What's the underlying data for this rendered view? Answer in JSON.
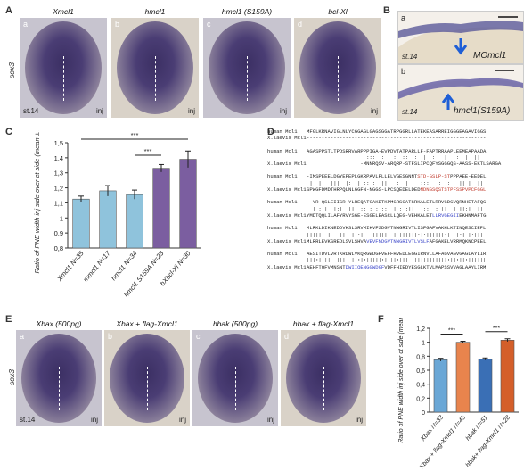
{
  "panels": {
    "A": {
      "letter": "A",
      "gene_label": "sox3",
      "stage": "st.14",
      "side": "inj",
      "items": [
        {
          "sub": "a",
          "title": "Xmcl1"
        },
        {
          "sub": "b",
          "title": "hmcl1"
        },
        {
          "sub": "c",
          "title": "hmcl1 (S159A)"
        },
        {
          "sub": "d",
          "title": "bcl-Xl"
        }
      ]
    },
    "B": {
      "letter": "B",
      "items": [
        {
          "sub": "a",
          "stage": "st.14",
          "label": "MOmcl1"
        },
        {
          "sub": "b",
          "stage": "st.14",
          "label": "hmcl1(S159A)"
        }
      ]
    },
    "C": {
      "letter": "C"
    },
    "D": {
      "letter": "D",
      "blocks": [
        [
          {
            "name": "human Mcl1",
            "seq": "MFGLKRNAVIGLNLYCGGAGLGAGSGGATRPGGRLLATEKEASARREIGGGEAGAVIGGS"
          },
          {
            "name": "",
            "seq": ""
          },
          {
            "name": "X.laevis Mcl1",
            "seq": "------------------------------------------------------------"
          }
        ],
        [
          {
            "name": "human Mcl1",
            "seq": "AGASPPSTLTPDSRRVARPPPIGA-EVPDVTATPARLLF-FAPTRRAAPLEEMEAPAADA"
          },
          {
            "name": "",
            "seq": "                    :::  :   :  ::  :  |  :   |   :  |  ||"
          },
          {
            "name": "X.laevis Mcl1",
            "seq": "                  -MNNRQSV-ARQRP-STFSLIPCQFYSGGGQS-AASS-EKTLSARGA"
          }
        ],
        [
          {
            "name": "human Mcl1",
            "seq": "-IMSPEEELDGYEPEPLGKRPAVLPLLELVGESGNNTSTD-GSLP-STPPPAEE-EEDEL",
            "hl": "STD-GSLP-ST"
          },
          {
            "name": "",
            "seq": " |  ||  |||  |: || :: :  ||   :  |    :::   :  :   || |  ||"
          },
          {
            "name": "X.laevis Mcl1",
            "seq": "SPWGFDMDTHRPQLNLGGFN-NGGS-LPCSQEDELDEDMDNGSQSTSTPFSSPVPCFGGL",
            "hl": "MDNGSQSTSTPFSSPVPCFGGL"
          }
        ],
        [
          {
            "name": "human Mcl1",
            "seq": "--YR-QSLEIISR-YLREQATGAKDTKPMGRSGATSRKALETLRRVGDGVQRNHETAFQG"
          },
          {
            "name": "",
            "seq": "  | : |  |:|  ||| :: : : ::  | : :||   ::  : ||  | ||:|  ||"
          },
          {
            "name": "X.laevis Mcl1",
            "seq": "YMDTQQLILAFYRVYSGE-ESGELEASCLLQEG-VEHKALETLLRVGEGIIEKHNMAFTG",
            "bl": "LLRVGEGII"
          }
        ],
        [
          {
            "name": "human Mcl1",
            "seq": "MLRKLDIKNEDDVKSLSRVMIHVFSDGVTNWGRIVTLISFGAFVAKHLKTINQESCIEPL"
          },
          {
            "name": "",
            "seq": "|||||  |   ||  ||:|   |||||| | ||||||:|:||||||:|  |:| |:|||"
          },
          {
            "name": "X.laevis Mcl1",
            "seq": "MLRRLEVKSREDLSVLSHVAVEVFNDGVTNWGRIVTLVSLFAFGAKELVRRMQKNCPEEL",
            "bl": "VEVFNDGVTNWGRIVTLVSLF"
          }
        ],
        [
          {
            "name": "human Mcl1",
            "seq": "AESITDVLVRTKRDWLVKQRGWDGFVEFFHVEDLEGGIRNVLLAFAGVAGVGAGLAYLIR"
          },
          {
            "name": "",
            "seq": "|||:| ||  |||  ||:|:|||||:||||:|||  |||||||||||:||:||:||||||"
          },
          {
            "name": "X.laevis Mcl1",
            "seq": "AEHFTQFVMNSNTDWIIQENGGWDGFVDFFHIEDYESGLKTVLMAPSSVVAGLAAYLIRM",
            "bl": "DWIIQENGGWDGF"
          }
        ]
      ]
    },
    "E": {
      "letter": "E",
      "gene_label": "sox3",
      "stage": "st.14",
      "side": "inj",
      "items": [
        {
          "sub": "a",
          "title": "Xbax (500pg)"
        },
        {
          "sub": "b",
          "title": "Xbax + flag-Xmcl1"
        },
        {
          "sub": "c",
          "title": "hbak (500pg)"
        },
        {
          "sub": "d",
          "title": "hbak + flag-Xmcl1"
        }
      ]
    },
    "F": {
      "letter": "F"
    }
  },
  "chart_data": [
    {
      "id": "C",
      "type": "bar",
      "ylabel": "Ratio of PNE width inj side over ct side (mean ± s.e.)",
      "ylim": [
        0.8,
        1.5
      ],
      "yticks": [
        "0,8",
        "0,9",
        "1",
        "1,1",
        "1,2",
        "1,3",
        "1,4",
        "1,5"
      ],
      "ytick_values": [
        0.8,
        0.9,
        1.0,
        1.1,
        1.2,
        1.3,
        1.4,
        1.5
      ],
      "categories": [
        "Xmcl1 N=35",
        "mmcl1 N=17",
        "hmcl1 N=34",
        "hmcl1 S159A N=23",
        "hXbcl-Xl N=30"
      ],
      "values": [
        1.125,
        1.18,
        1.155,
        1.33,
        1.39
      ],
      "errors": [
        0.02,
        0.035,
        0.03,
        0.025,
        0.055
      ],
      "colors": [
        "#8fc3dc",
        "#8fc3dc",
        "#8fc3dc",
        "#7b5ea0",
        "#7b5ea0"
      ],
      "significance": [
        {
          "from": 0,
          "to": 4,
          "label": "***"
        },
        {
          "from": 2,
          "to": 3,
          "label": "***"
        }
      ]
    },
    {
      "id": "F",
      "type": "bar",
      "ylabel": "Ratio of PNE width inj side over ct side (mean ± s.e.)",
      "ylim": [
        0,
        1.2
      ],
      "yticks": [
        "0",
        "0,2",
        "0,4",
        "0,6",
        "0,8",
        "1",
        "1,2"
      ],
      "ytick_values": [
        0,
        0.2,
        0.4,
        0.6,
        0.8,
        1.0,
        1.2
      ],
      "categories": [
        "Xbax N=33",
        "Xbax + flag-Xmcl1 N=45",
        "hbak N=51",
        "hbak+ flag-Xmcl1 N=28"
      ],
      "values": [
        0.75,
        1.0,
        0.76,
        1.03
      ],
      "errors": [
        0.02,
        0.015,
        0.015,
        0.02
      ],
      "colors": [
        "#6aa7d6",
        "#e8844d",
        "#3a6fb5",
        "#d45f2a"
      ],
      "significance": [
        {
          "from": 0,
          "to": 1,
          "label": "***"
        },
        {
          "from": 2,
          "to": 3,
          "label": "***"
        }
      ]
    }
  ]
}
